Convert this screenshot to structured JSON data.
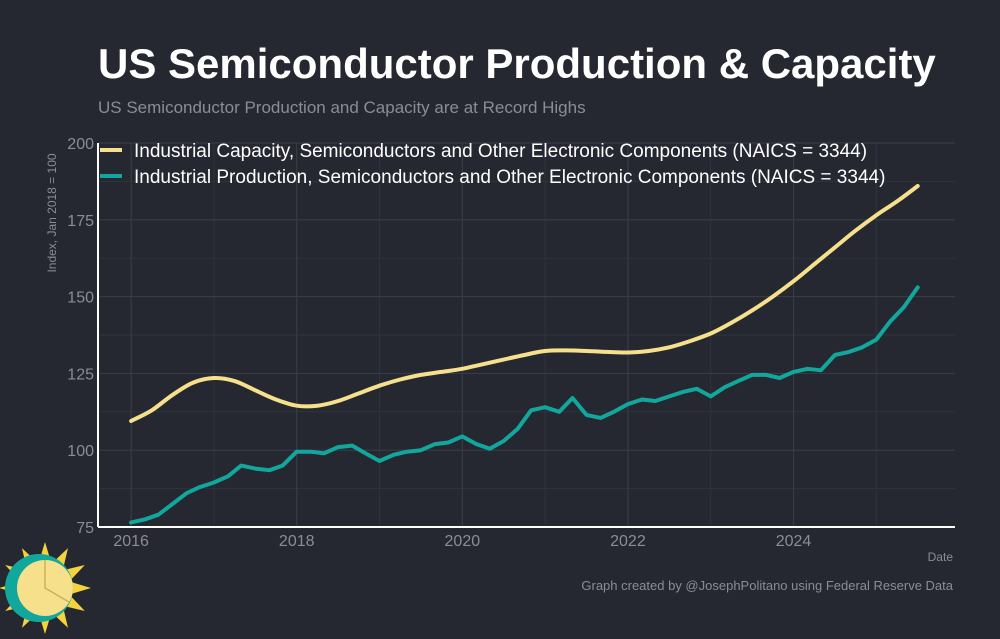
{
  "chart_data": {
    "type": "line",
    "title": "US Semiconductor Production & Capacity",
    "subtitle": "US Semiconductor Production and Capacity are at Record Highs",
    "xlabel": "Date",
    "ylabel": "Index, Jan 2018 = 100",
    "x_ticks": [
      "2016",
      "2018",
      "2020",
      "2022",
      "2024"
    ],
    "y_ticks": [
      75,
      100,
      125,
      150,
      175,
      200
    ],
    "xlim": [
      2015.6,
      2025.95
    ],
    "ylim": [
      75,
      200
    ],
    "grid": true,
    "legend_position": "top-left",
    "caption": "Graph created by @JosephPolitano using Federal Reserve Data",
    "series": [
      {
        "name": "Industrial Capacity, Semiconductors and Other Electronic Components (NAICS = 3344)",
        "color": "#f7e08c",
        "points": [
          [
            2016.0,
            109.5
          ],
          [
            2016.25,
            113
          ],
          [
            2016.5,
            118
          ],
          [
            2016.75,
            122
          ],
          [
            2017.0,
            123.5
          ],
          [
            2017.25,
            122.5
          ],
          [
            2017.5,
            119.5
          ],
          [
            2017.75,
            116.5
          ],
          [
            2018.0,
            114.5
          ],
          [
            2018.25,
            114.5
          ],
          [
            2018.5,
            116
          ],
          [
            2018.75,
            118.5
          ],
          [
            2019.0,
            121
          ],
          [
            2019.25,
            123
          ],
          [
            2019.5,
            124.5
          ],
          [
            2019.75,
            125.5
          ],
          [
            2020.0,
            126.5
          ],
          [
            2020.25,
            128
          ],
          [
            2020.5,
            129.5
          ],
          [
            2020.75,
            131
          ],
          [
            2021.0,
            132.3
          ],
          [
            2021.25,
            132.5
          ],
          [
            2021.5,
            132.3
          ],
          [
            2021.75,
            132
          ],
          [
            2022.0,
            131.8
          ],
          [
            2022.25,
            132.3
          ],
          [
            2022.5,
            133.5
          ],
          [
            2022.75,
            135.5
          ],
          [
            2023.0,
            138
          ],
          [
            2023.25,
            141.5
          ],
          [
            2023.5,
            145.5
          ],
          [
            2023.75,
            150
          ],
          [
            2024.0,
            155
          ],
          [
            2024.25,
            160.5
          ],
          [
            2024.5,
            166
          ],
          [
            2024.75,
            171.5
          ],
          [
            2025.0,
            176.5
          ],
          [
            2025.25,
            181
          ],
          [
            2025.5,
            186
          ]
        ]
      },
      {
        "name": "Industrial Production, Semiconductors and Other Electronic Components (NAICS = 3344)",
        "color": "#12a79d",
        "points": [
          [
            2016.0,
            76.5
          ],
          [
            2016.17,
            77.5
          ],
          [
            2016.33,
            79
          ],
          [
            2016.5,
            82.5
          ],
          [
            2016.67,
            86
          ],
          [
            2016.83,
            88
          ],
          [
            2017.0,
            89.5
          ],
          [
            2017.17,
            91.5
          ],
          [
            2017.33,
            95
          ],
          [
            2017.5,
            94
          ],
          [
            2017.67,
            93.5
          ],
          [
            2017.83,
            95
          ],
          [
            2018.0,
            99.5
          ],
          [
            2018.17,
            99.5
          ],
          [
            2018.33,
            99
          ],
          [
            2018.5,
            101
          ],
          [
            2018.67,
            101.5
          ],
          [
            2018.83,
            99
          ],
          [
            2019.0,
            96.5
          ],
          [
            2019.17,
            98.5
          ],
          [
            2019.33,
            99.5
          ],
          [
            2019.5,
            100
          ],
          [
            2019.67,
            102
          ],
          [
            2019.83,
            102.5
          ],
          [
            2020.0,
            104.5
          ],
          [
            2020.17,
            102
          ],
          [
            2020.33,
            100.5
          ],
          [
            2020.5,
            103
          ],
          [
            2020.67,
            107
          ],
          [
            2020.83,
            113
          ],
          [
            2021.0,
            114
          ],
          [
            2021.17,
            112.5
          ],
          [
            2021.33,
            117
          ],
          [
            2021.5,
            111.5
          ],
          [
            2021.67,
            110.5
          ],
          [
            2021.83,
            112.5
          ],
          [
            2022.0,
            115
          ],
          [
            2022.17,
            116.5
          ],
          [
            2022.33,
            116
          ],
          [
            2022.5,
            117.5
          ],
          [
            2022.67,
            119
          ],
          [
            2022.83,
            120
          ],
          [
            2023.0,
            117.5
          ],
          [
            2023.17,
            120.5
          ],
          [
            2023.33,
            122.5
          ],
          [
            2023.5,
            124.5
          ],
          [
            2023.67,
            124.5
          ],
          [
            2023.83,
            123.5
          ],
          [
            2024.0,
            125.5
          ],
          [
            2024.17,
            126.5
          ],
          [
            2024.33,
            126
          ],
          [
            2024.5,
            131
          ],
          [
            2024.67,
            132
          ],
          [
            2024.83,
            133.5
          ],
          [
            2025.0,
            136
          ],
          [
            2025.17,
            142
          ],
          [
            2025.33,
            146.5
          ],
          [
            2025.5,
            153
          ]
        ]
      }
    ]
  },
  "logo": {
    "name": "sun-logo",
    "colors": [
      "#f7e08c",
      "#f5d33d",
      "#12a79d"
    ]
  }
}
